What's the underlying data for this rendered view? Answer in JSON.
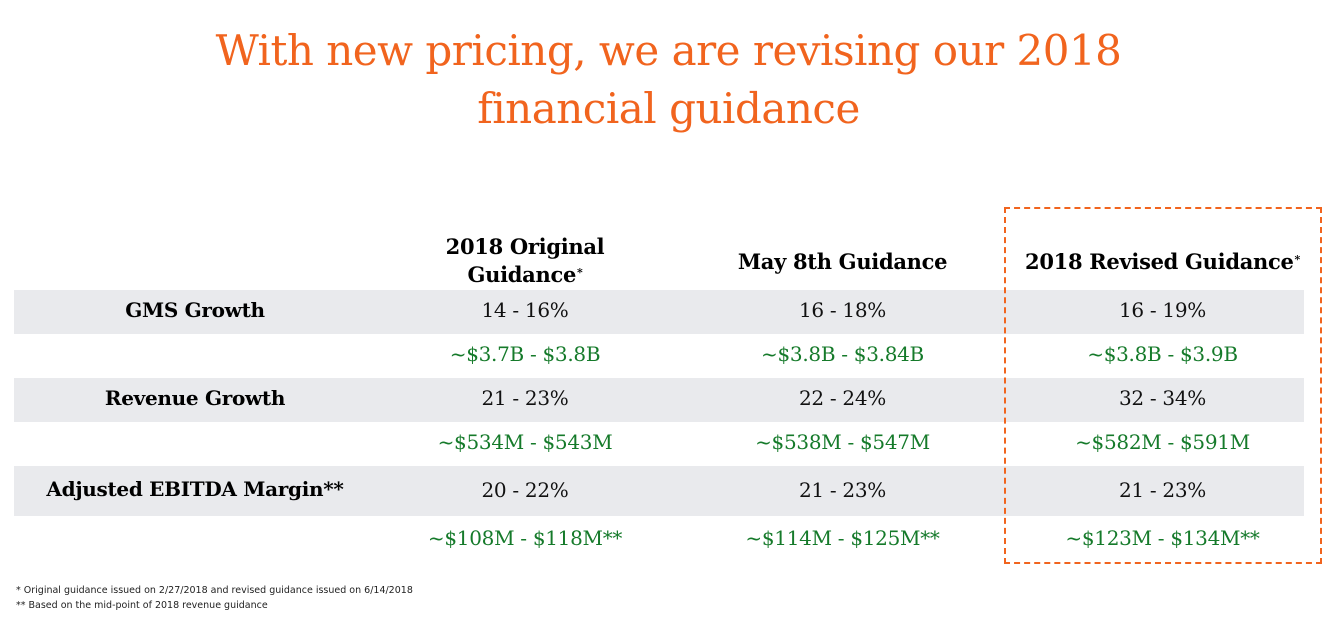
{
  "title": {
    "line1": "With new pricing, we are revising our 2018",
    "line2": "financial guidance"
  },
  "columns": {
    "original": {
      "line1": "2018 Original",
      "line2": "Guidance",
      "mark": "*"
    },
    "may": {
      "label": "May 8th Guidance"
    },
    "revised": {
      "label": "2018 Revised Guidance",
      "mark": "*"
    }
  },
  "rows": [
    {
      "label": "GMS Growth",
      "original_pct": "14 - 16%",
      "may_pct": "16 - 18%",
      "revised_pct": "16 - 19%",
      "original_amt": "~$3.7B - $3.8B",
      "may_amt": "~$3.8B - $3.84B",
      "revised_amt": "~$3.8B - $3.9B"
    },
    {
      "label": "Revenue Growth",
      "original_pct": "21 - 23%",
      "may_pct": "22 - 24%",
      "revised_pct": "32 - 34%",
      "original_amt": "~$534M - $543M",
      "may_amt": "~$538M - $547M",
      "revised_amt": "~$582M - $591M"
    },
    {
      "label": "Adjusted EBITDA Margin**",
      "original_pct": "20 - 22%",
      "may_pct": "21 - 23%",
      "revised_pct": "21 - 23%",
      "original_amt": "~$108M - $118M**",
      "may_amt": "~$114M - $125M**",
      "revised_amt": "~$123M - $134M**"
    }
  ],
  "footnotes": {
    "note1": "* Original guidance issued on 2/27/2018 and revised guidance issued on 6/14/2018",
    "note2": "** Based on the mid-point of 2018 revenue guidance"
  },
  "colors": {
    "accent": "#F1641E",
    "band": "#E9EAED",
    "green_value": "#157A2A"
  }
}
